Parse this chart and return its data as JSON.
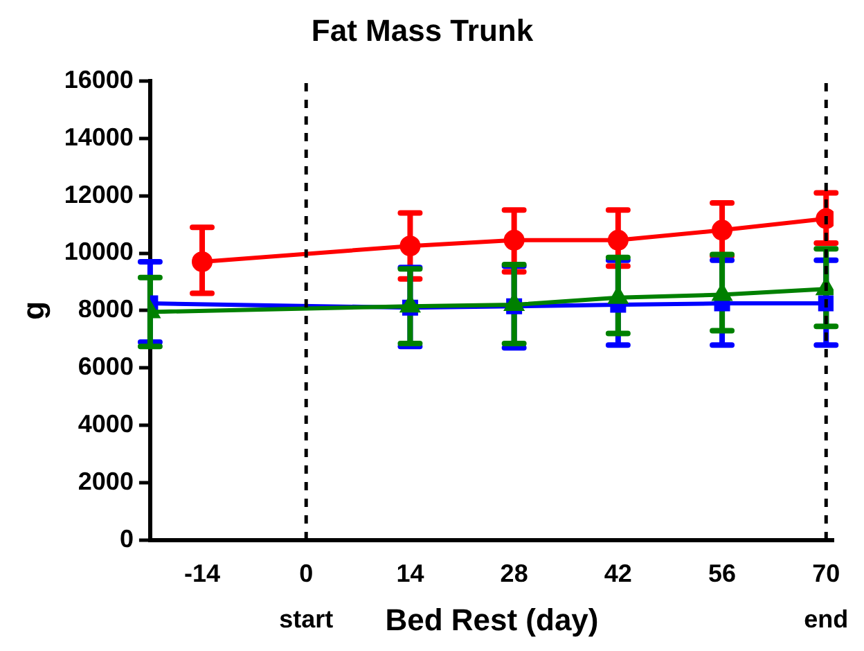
{
  "chart_data": {
    "type": "line",
    "title": "Fat Mass Trunk",
    "xlabel": "Bed Rest (day)",
    "ylabel": "g",
    "xlim": [
      -21,
      71
    ],
    "xticks": [
      -14,
      0,
      14,
      28,
      42,
      56,
      70
    ],
    "ylim": [
      0,
      16000
    ],
    "yticks": [
      0,
      2000,
      4000,
      6000,
      8000,
      10000,
      12000,
      14000,
      16000
    ],
    "grid": false,
    "legend": false,
    "series": [
      {
        "color": "#ff0000",
        "marker": "circle",
        "x": [
          -14,
          14,
          28,
          42,
          56,
          70
        ],
        "values": [
          9700,
          10250,
          10450,
          10450,
          10800,
          11200
        ],
        "errors": [
          [
            8600,
            10900
          ],
          [
            9100,
            11400
          ],
          [
            9350,
            11500
          ],
          [
            9550,
            11500
          ],
          [
            9900,
            11750
          ],
          [
            10350,
            12100
          ]
        ]
      },
      {
        "color": "#0000ff",
        "marker": "square",
        "x": [
          -21,
          14,
          28,
          42,
          56,
          70
        ],
        "values": [
          8250,
          8100,
          8150,
          8200,
          8250,
          8250
        ],
        "errors": [
          [
            6900,
            9700
          ],
          [
            6750,
            9500
          ],
          [
            6700,
            9550
          ],
          [
            6800,
            9750
          ],
          [
            6800,
            9750
          ],
          [
            6800,
            9750
          ]
        ]
      },
      {
        "color": "#008000",
        "marker": "triangle",
        "x": [
          -21,
          14,
          28,
          42,
          56,
          70
        ],
        "values": [
          7950,
          8150,
          8200,
          8450,
          8550,
          8750
        ],
        "errors": [
          [
            6750,
            9150
          ],
          [
            6850,
            9450
          ],
          [
            6850,
            9600
          ],
          [
            7200,
            9850
          ],
          [
            7300,
            9950
          ],
          [
            7450,
            10150
          ]
        ]
      }
    ],
    "ref_lines": [
      {
        "axis": "x",
        "value": 0,
        "label": "start",
        "line_style": "dashed",
        "color": "#000000"
      },
      {
        "axis": "x",
        "value": 70,
        "label": "end",
        "line_style": "dashed",
        "color": "#000000"
      }
    ]
  }
}
